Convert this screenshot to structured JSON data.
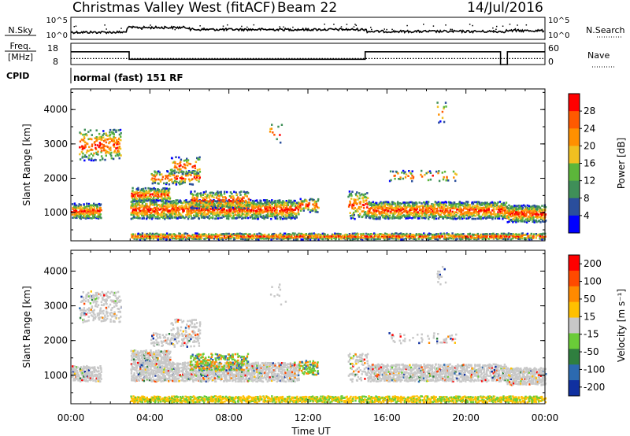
{
  "header": {
    "title": "Christmas Valley West (fitACF)",
    "beam": "Beam 22",
    "date": "14/Jul/2016"
  },
  "top_panels": {
    "nsky_label": "N.Sky",
    "nsky_ticks": [
      "10^5",
      "10^0"
    ],
    "nsearch_label": "N.Search",
    "freq_label_1": "Freq.",
    "freq_label_2": "[MHz]",
    "freq_ticks": [
      "18",
      "8"
    ],
    "nave_label": "Nave",
    "nave_ticks": [
      "60",
      "0"
    ],
    "cpid_label": "CPID",
    "cpid_text": "normal (fast) 151 RF"
  },
  "colors": {
    "power": [
      "#0000ff",
      "#2a4e9c",
      "#3f8f58",
      "#5cb63a",
      "#f0c020",
      "#ff9000",
      "#ff5a00",
      "#ff0000"
    ],
    "velocity": [
      "#1030a0",
      "#2c6ab0",
      "#2f7f3f",
      "#6acc38",
      "#c8c8c8",
      "#ffc000",
      "#ff8a00",
      "#ff4a00",
      "#ff0000"
    ]
  },
  "chart_data": [
    {
      "type": "heatmap",
      "title": "Power",
      "ylabel": "Slant Range [km]",
      "xlabel": "",
      "x_ticks": [
        "00:00",
        "04:00",
        "08:00",
        "12:00",
        "16:00",
        "20:00",
        "00:00"
      ],
      "xlim_hours": [
        0,
        24
      ],
      "y_ticks": [
        1000,
        2000,
        3000,
        4000
      ],
      "ylim_km": [
        180,
        4600
      ],
      "colorbar_label": "Power [dB]",
      "colorbar_ticks": [
        4,
        8,
        12,
        16,
        20,
        24,
        28
      ]
    },
    {
      "type": "heatmap",
      "title": "Velocity",
      "ylabel": "Slant Range [km]",
      "xlabel": "Time UT",
      "x_ticks": [
        "00:00",
        "04:00",
        "08:00",
        "12:00",
        "16:00",
        "20:00",
        "00:00"
      ],
      "xlim_hours": [
        0,
        24
      ],
      "y_ticks": [
        1000,
        2000,
        3000,
        4000
      ],
      "ylim_km": [
        180,
        4600
      ],
      "colorbar_label": "Velocity [m s⁻¹]",
      "colorbar_ticks": [
        200,
        100,
        50,
        15,
        -15,
        -50,
        -100,
        -200
      ]
    }
  ],
  "frequency_mhz_segments": [
    {
      "start": 0.0,
      "end": 2.95,
      "value": 14
    },
    {
      "start": 2.95,
      "end": 14.9,
      "value": 10.5
    },
    {
      "start": 14.9,
      "end": 21.75,
      "value": 14
    },
    {
      "start": 21.75,
      "end": 22.1,
      "value": 8
    },
    {
      "start": 22.1,
      "end": 24.0,
      "value": 14
    }
  ],
  "nave_level": 17
}
